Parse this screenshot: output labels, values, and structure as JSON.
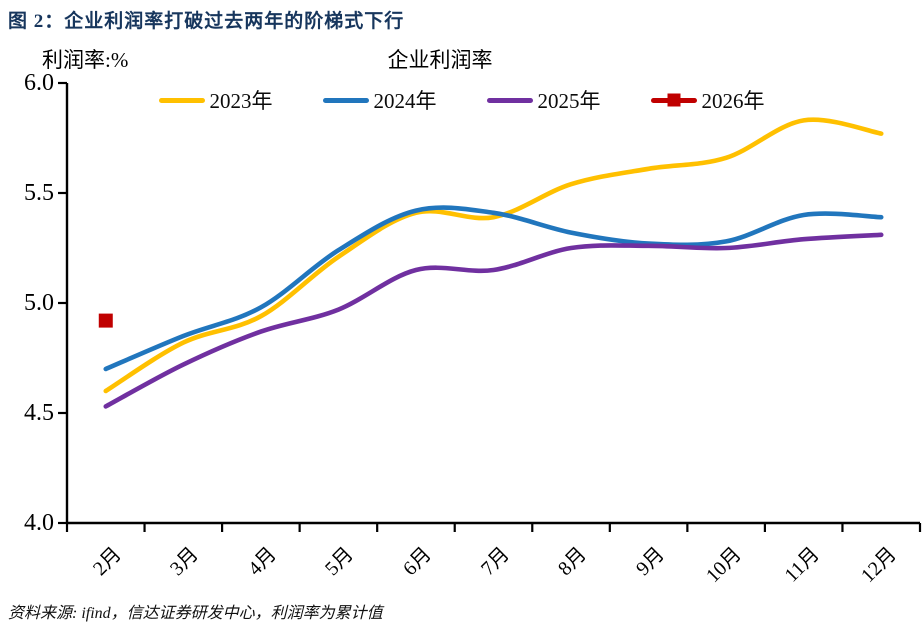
{
  "figure_title": "图 2：企业利润率打破过去两年的阶梯式下行",
  "source_note": "资料来源: ifind，信达证券研发中心，利润率为累计值",
  "colors": {
    "title_navy": "#17365D",
    "axis_black": "#000000",
    "series_2023": "#FFC000",
    "series_2024": "#2176BD",
    "series_2025": "#7030A0",
    "series_2026": "#C00000"
  },
  "chart_data": {
    "type": "line",
    "title": "企业利润率",
    "ylabel": "利润率:%",
    "xlabel": "",
    "ylim": [
      4.0,
      6.0
    ],
    "y_ticks": [
      "6.0",
      "5.5",
      "5.0",
      "4.5",
      "4.0"
    ],
    "grid": false,
    "legend_position": "top",
    "line_style": "smooth",
    "categories": [
      "2月",
      "3月",
      "4月",
      "5月",
      "6月",
      "7月",
      "8月",
      "9月",
      "10月",
      "11月",
      "12月"
    ],
    "series": [
      {
        "name": "2023年",
        "color": "#FFC000",
        "marker": "none",
        "values": [
          4.6,
          4.82,
          4.94,
          5.21,
          5.41,
          5.39,
          5.54,
          5.61,
          5.66,
          5.83,
          5.77
        ]
      },
      {
        "name": "2024年",
        "color": "#2176BD",
        "marker": "none",
        "values": [
          4.7,
          4.85,
          4.98,
          5.24,
          5.42,
          5.41,
          5.32,
          5.27,
          5.28,
          5.4,
          5.39
        ]
      },
      {
        "name": "2025年",
        "color": "#7030A0",
        "marker": "none",
        "values": [
          4.53,
          4.72,
          4.87,
          4.97,
          5.15,
          5.15,
          5.25,
          5.26,
          5.25,
          5.29,
          5.31
        ]
      },
      {
        "name": "2026年",
        "color": "#C00000",
        "marker": "square",
        "values": [
          4.92,
          null,
          null,
          null,
          null,
          null,
          null,
          null,
          null,
          null,
          null
        ]
      }
    ]
  }
}
